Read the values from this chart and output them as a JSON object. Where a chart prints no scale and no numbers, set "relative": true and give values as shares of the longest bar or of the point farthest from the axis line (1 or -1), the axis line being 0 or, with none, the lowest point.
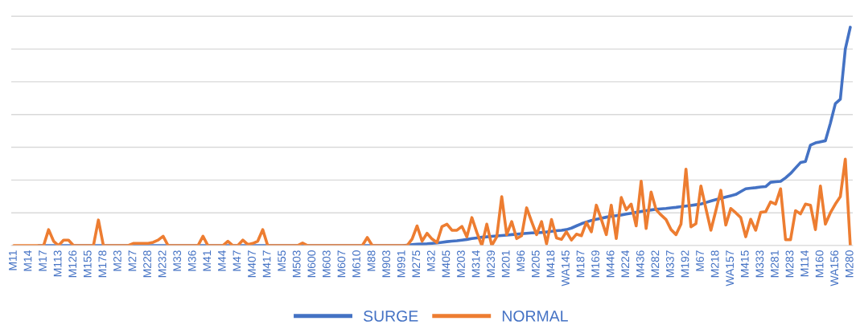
{
  "chart_data": {
    "type": "line",
    "relative": true,
    "grid": "y",
    "legend": "bottom",
    "marker": "none",
    "line_style": "solid",
    "categories": [
      "M11",
      null,
      null,
      "M14",
      null,
      null,
      "M17",
      null,
      null,
      "M113",
      null,
      null,
      "M126",
      null,
      null,
      "M155",
      null,
      null,
      "M178",
      null,
      null,
      "M23",
      null,
      null,
      "M27",
      null,
      null,
      "M228",
      null,
      null,
      "M232",
      null,
      null,
      "M33",
      null,
      null,
      "M36",
      null,
      null,
      "M41",
      null,
      null,
      "M44",
      null,
      null,
      "M47",
      null,
      null,
      "M407",
      null,
      null,
      "M417",
      null,
      null,
      "M55",
      null,
      null,
      "M503",
      null,
      null,
      "M600",
      null,
      null,
      "M603",
      null,
      null,
      "M607",
      null,
      null,
      "M610",
      null,
      null,
      "M88",
      null,
      null,
      "M903",
      null,
      null,
      "M991",
      null,
      null,
      "M275",
      null,
      null,
      "M32",
      null,
      null,
      "M405",
      null,
      null,
      "M203",
      null,
      null,
      "M314",
      null,
      null,
      "M239",
      null,
      null,
      "M201",
      null,
      null,
      "M96",
      null,
      null,
      "M205",
      null,
      null,
      "M418",
      null,
      null,
      "WA145",
      null,
      null,
      "M187",
      null,
      null,
      "M169",
      null,
      null,
      "M446",
      null,
      null,
      "M224",
      null,
      null,
      "M436",
      null,
      null,
      "M282",
      null,
      null,
      "M337",
      null,
      null,
      "M192",
      null,
      null,
      "M67",
      null,
      null,
      "M218",
      null,
      null,
      "WA157",
      null,
      null,
      "M415",
      null,
      null,
      "M333",
      null,
      null,
      "M281",
      null,
      null,
      "M283",
      null,
      null,
      "M114",
      null,
      null,
      "M160",
      null,
      null,
      "WA156",
      null,
      null,
      "M280"
    ],
    "series": [
      {
        "name": "SURGE",
        "color": "#4472c4",
        "values": [
          null,
          null,
          null,
          null,
          null,
          0,
          0,
          0,
          0,
          0,
          0,
          0,
          0,
          0,
          0,
          0,
          0,
          0,
          0,
          0,
          0,
          0,
          0,
          0,
          0,
          0,
          0,
          0,
          0,
          0,
          0,
          0,
          0,
          0,
          0,
          0,
          0,
          0,
          0,
          0,
          0,
          0,
          0,
          0,
          0,
          0,
          0,
          0,
          0,
          0,
          0,
          0,
          0,
          0,
          0,
          0,
          0,
          0,
          0,
          0,
          0,
          0,
          0,
          0,
          0,
          0,
          0,
          0,
          0,
          0,
          0,
          0,
          0,
          0,
          0,
          0,
          0,
          0,
          0,
          0.002,
          0.004,
          0.006,
          0.007,
          0.008,
          0.01,
          0.012,
          0.015,
          0.018,
          0.02,
          0.022,
          0.025,
          0.028,
          0.032,
          0.035,
          0.038,
          0.04,
          0.042,
          0.044,
          0.046,
          0.048,
          0.05,
          0.052,
          0.054,
          0.056,
          0.058,
          0.059,
          0.06,
          0.062,
          0.065,
          0.068,
          0.07,
          0.073,
          0.08,
          0.09,
          0.1,
          0.108,
          0.115,
          0.12,
          0.125,
          0.13,
          0.134,
          0.137,
          0.14,
          0.144,
          0.148,
          0.152,
          0.156,
          0.16,
          0.163,
          0.166,
          0.168,
          0.17,
          0.173,
          0.175,
          0.178,
          0.181,
          0.184,
          0.187,
          0.19,
          0.197,
          0.204,
          0.21,
          0.216,
          0.222,
          0.228,
          0.234,
          0.247,
          0.26,
          0.263,
          0.265,
          0.268,
          0.27,
          0.29,
          0.292,
          0.294,
          0.31,
          0.33,
          0.355,
          0.38,
          0.385,
          0.46,
          0.47,
          0.475,
          0.48,
          0.56,
          0.65,
          0.67,
          0.9,
          1.0
        ]
      },
      {
        "name": "NORMAL",
        "color": "#ed7d31",
        "values": [
          0,
          0,
          0,
          0,
          0,
          0,
          0,
          0.073,
          0.02,
          0,
          0.025,
          0.025,
          0,
          0,
          0,
          0,
          0,
          0.117,
          0,
          0,
          0,
          0,
          0,
          0,
          0.01,
          0.01,
          0.01,
          0.01,
          0.015,
          0.025,
          0.043,
          0,
          0,
          0,
          0,
          0,
          0,
          0,
          0.043,
          0,
          0,
          0,
          0,
          0.02,
          0,
          0,
          0.025,
          0.005,
          0.01,
          0.02,
          0.073,
          0,
          0,
          0,
          0,
          0,
          0,
          0,
          0.012,
          0,
          0,
          0,
          0,
          0,
          0,
          0,
          0,
          0,
          0,
          0,
          0,
          0.037,
          0,
          0,
          0,
          0,
          0,
          0,
          0,
          0,
          0.03,
          0.09,
          0.02,
          0.056,
          0.03,
          0.014,
          0.087,
          0.098,
          0.07,
          0.07,
          0.088,
          0.04,
          0.128,
          0.06,
          0,
          0.098,
          0,
          0.04,
          0.224,
          0.05,
          0.11,
          0.032,
          0.045,
          0.173,
          0.11,
          0.05,
          0.11,
          0.008,
          0.119,
          0.035,
          0.028,
          0.063,
          0.025,
          0.052,
          0.045,
          0.106,
          0.063,
          0.185,
          0.12,
          0.05,
          0.185,
          0.032,
          0.22,
          0.164,
          0.19,
          0.09,
          0.295,
          0.078,
          0.245,
          0.164,
          0.14,
          0.119,
          0.073,
          0.05,
          0.098,
          0.35,
          0.086,
          0.1,
          0.273,
          0.17,
          0.07,
          0.16,
          0.253,
          0.094,
          0.17,
          0.15,
          0.128,
          0.04,
          0.12,
          0.07,
          0.152,
          0.155,
          0.2,
          0.19,
          0.26,
          0.027,
          0.027,
          0.16,
          0.145,
          0.19,
          0.185,
          0.073,
          0.273,
          0.098,
          0.15,
          0.19,
          0.224,
          0.396,
          0
        ]
      }
    ]
  }
}
